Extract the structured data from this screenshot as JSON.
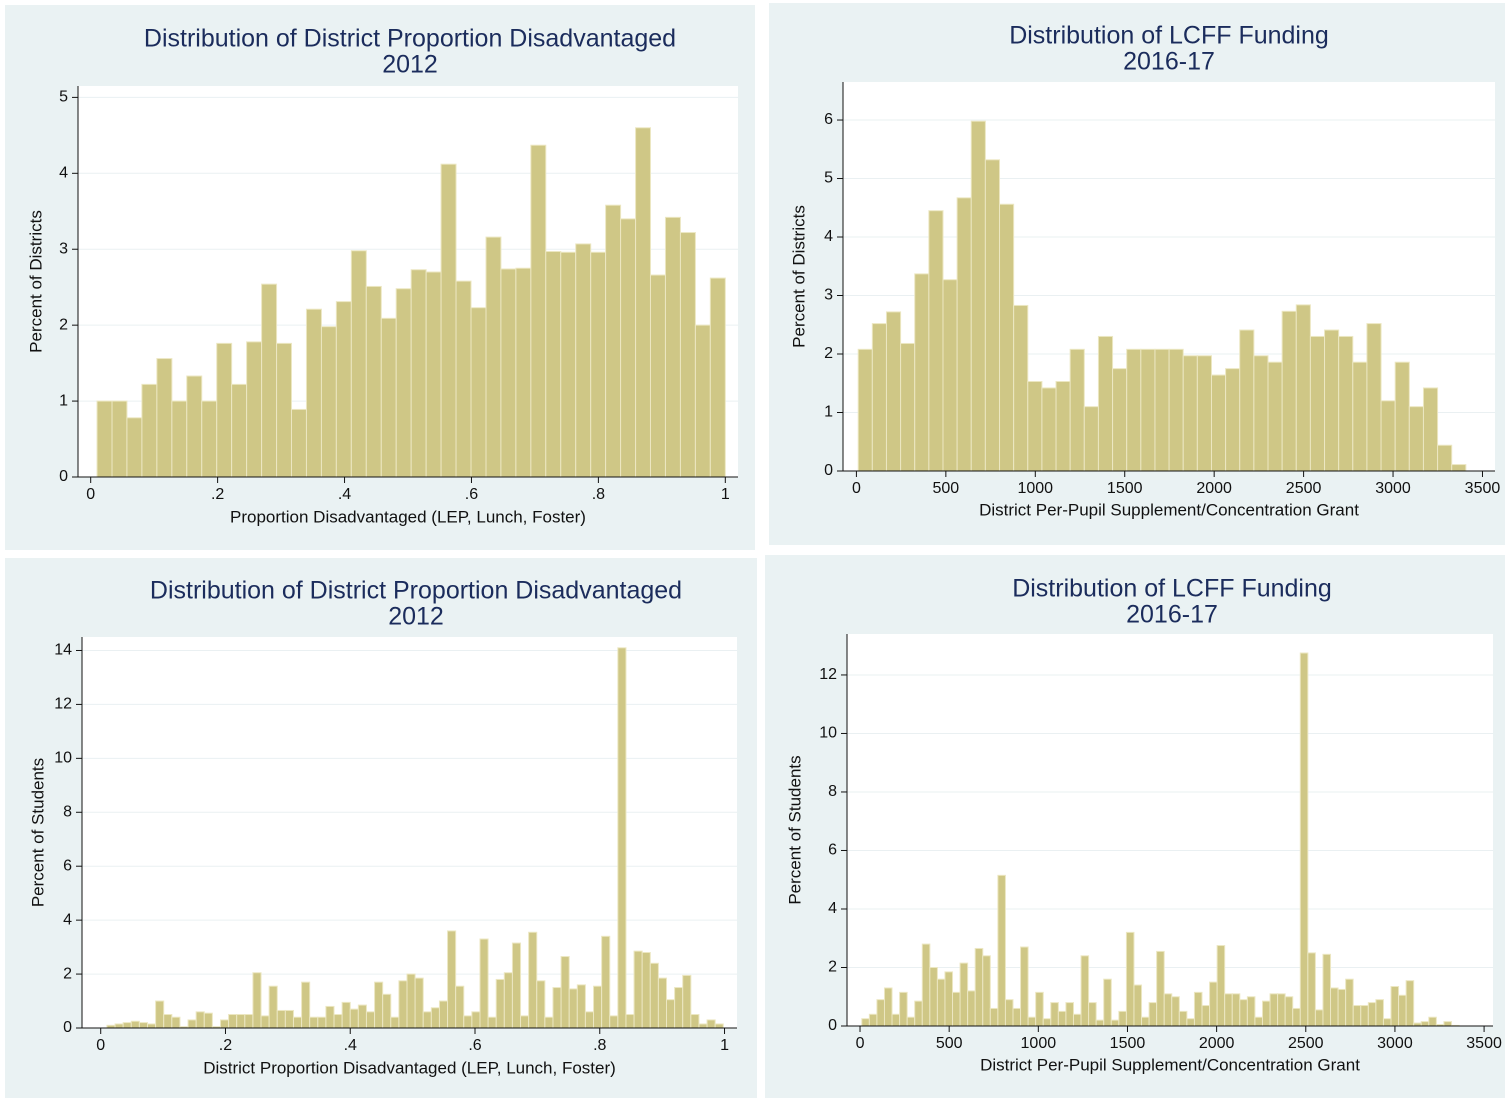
{
  "chart_data": [
    {
      "type": "histogram",
      "title": "Distribution of District Proportion Disadvantaged",
      "subtitle": "2012",
      "x_label": "Proportion Disadvantaged (LEP, Lunch, Foster)",
      "y_label": "Percent of Districts",
      "bins": [
        0.01,
        0.0336,
        0.0571,
        0.0807,
        0.1043,
        0.1279,
        0.1514,
        0.175,
        0.1986,
        0.2221,
        0.2457,
        0.2693,
        0.2929,
        0.3164,
        0.34,
        0.3636,
        0.3871,
        0.4107,
        0.4343,
        0.4579,
        0.4814,
        0.505,
        0.5286,
        0.5521,
        0.5757,
        0.5993,
        0.6229,
        0.6464,
        0.67,
        0.6936,
        0.7171,
        0.7407,
        0.7643,
        0.7879,
        0.8114,
        0.835,
        0.8586,
        0.8821,
        0.9057,
        0.9293,
        0.9529,
        0.9764,
        1.0
      ],
      "values": [
        1.0,
        1.0,
        0.78,
        1.22,
        1.56,
        1.0,
        1.33,
        1.0,
        1.76,
        1.22,
        1.78,
        2.54,
        1.76,
        0.89,
        2.21,
        1.98,
        2.31,
        2.98,
        2.51,
        2.09,
        2.48,
        2.73,
        2.7,
        4.12,
        2.58,
        2.23,
        3.16,
        2.74,
        2.75,
        4.37,
        2.97,
        2.96,
        3.07,
        2.96,
        3.58,
        3.4,
        4.6,
        2.66,
        3.42,
        3.22,
        2.0,
        2.62
      ],
      "color": "#cfc786",
      "xlim": [
        -0.02,
        1.02
      ],
      "ylim": [
        0,
        5.15
      ],
      "xticks": [
        0,
        {
          "value": 0.2,
          "label": ".2"
        },
        {
          "value": 0.4,
          "label": ".4"
        },
        {
          "value": 0.6,
          "label": ".6"
        },
        {
          "value": 0.8,
          "label": ".8"
        },
        1
      ],
      "yticks": [
        0,
        1,
        2,
        3,
        4,
        5
      ],
      "grid": true
    },
    {
      "type": "histogram",
      "title": "Distribution of LCFF Funding",
      "subtitle": "2016-17",
      "x_label": "District Per-Pupil Supplement/Concentration Grant",
      "y_label": "Percent of Districts",
      "bins": [
        10,
        89,
        168,
        247,
        326,
        405,
        484,
        563,
        642,
        721,
        800,
        879,
        958,
        1037,
        1116,
        1195,
        1274,
        1353,
        1432,
        1511,
        1590,
        1669,
        1748,
        1827,
        1906,
        1985,
        2064,
        2143,
        2222,
        2301,
        2380,
        2459,
        2538,
        2617,
        2696,
        2775,
        2854,
        2933,
        3012,
        3091,
        3170,
        3249,
        3328,
        3407
      ],
      "values": [
        2.08,
        2.52,
        2.72,
        2.18,
        3.37,
        4.45,
        3.27,
        4.67,
        5.98,
        5.32,
        4.56,
        2.83,
        1.53,
        1.42,
        1.53,
        2.08,
        1.1,
        2.3,
        1.75,
        2.08,
        2.08,
        2.08,
        2.08,
        1.97,
        1.97,
        1.64,
        1.75,
        2.41,
        1.97,
        1.86,
        2.73,
        2.84,
        2.3,
        2.41,
        2.3,
        1.86,
        2.52,
        1.2,
        1.86,
        1.1,
        1.42,
        0.44,
        0.11
      ],
      "color": "#cfc786",
      "xlim": [
        -75,
        3570
      ],
      "ylim": [
        0,
        6.65
      ],
      "xticks": [
        0,
        500,
        1000,
        1500,
        2000,
        2500,
        3000,
        3500
      ],
      "yticks": [
        0,
        1,
        2,
        3,
        4,
        5,
        6
      ],
      "grid": true
    },
    {
      "type": "histogram",
      "title": "Distribution of District Proportion Disadvantaged",
      "subtitle": "2012",
      "x_label": "District Proportion Disadvantaged (LEP, Lunch, Foster)",
      "y_label": "Percent of Students",
      "bins": [
        0.01,
        0.023,
        0.036,
        0.049,
        0.062,
        0.075,
        0.088,
        0.101,
        0.114,
        0.127,
        0.14,
        0.153,
        0.166,
        0.179,
        0.192,
        0.205,
        0.218,
        0.231,
        0.244,
        0.257,
        0.27,
        0.283,
        0.296,
        0.309,
        0.322,
        0.335,
        0.348,
        0.361,
        0.374,
        0.387,
        0.4,
        0.413,
        0.426,
        0.439,
        0.452,
        0.465,
        0.478,
        0.491,
        0.504,
        0.517,
        0.53,
        0.543,
        0.556,
        0.569,
        0.582,
        0.595,
        0.608,
        0.621,
        0.634,
        0.647,
        0.66,
        0.673,
        0.686,
        0.699,
        0.712,
        0.725,
        0.738,
        0.751,
        0.764,
        0.777,
        0.79,
        0.803,
        0.816,
        0.829,
        0.842,
        0.855,
        0.868,
        0.881,
        0.894,
        0.907,
        0.92,
        0.933,
        0.946,
        0.959,
        0.972,
        0.985,
        0.998
      ],
      "values": [
        0.1,
        0.15,
        0.2,
        0.25,
        0.2,
        0.15,
        1.0,
        0.5,
        0.4,
        0.05,
        0.3,
        0.6,
        0.55,
        0.05,
        0.3,
        0.5,
        0.5,
        0.5,
        2.05,
        0.45,
        1.55,
        0.65,
        0.65,
        0.4,
        1.7,
        0.4,
        0.4,
        0.8,
        0.5,
        0.95,
        0.7,
        0.85,
        0.6,
        1.7,
        1.25,
        0.4,
        1.75,
        2.0,
        1.85,
        0.6,
        0.75,
        1.0,
        3.6,
        1.55,
        0.45,
        0.6,
        3.3,
        0.4,
        1.8,
        2.05,
        3.15,
        0.45,
        3.55,
        1.75,
        0.4,
        1.5,
        2.65,
        1.45,
        1.6,
        0.6,
        1.55,
        3.4,
        0.45,
        14.1,
        0.5,
        2.85,
        2.8,
        2.4,
        1.85,
        1.05,
        1.5,
        1.95,
        0.5,
        0.15,
        0.3,
        0.15
      ],
      "color": "#cfc786",
      "xlim": [
        -0.03,
        1.02
      ],
      "ylim": [
        0,
        14.5
      ],
      "xticks": [
        0,
        {
          "value": 0.2,
          "label": ".2"
        },
        {
          "value": 0.4,
          "label": ".4"
        },
        {
          "value": 0.6,
          "label": ".6"
        },
        {
          "value": 0.8,
          "label": ".8"
        },
        1
      ],
      "yticks": [
        0,
        2,
        4,
        6,
        8,
        10,
        12,
        14
      ],
      "grid": true
    },
    {
      "type": "histogram",
      "title": "Distribution of LCFF Funding",
      "subtitle": "2016-17",
      "x_label": "District Per-Pupil Supplement/Concentration Grant",
      "y_label": "Percent of Students",
      "bins": [
        10,
        52.4,
        94.8,
        137.2,
        179.6,
        222,
        264.4,
        306.8,
        349.2,
        391.6,
        434,
        476.4,
        518.8,
        561.2,
        603.6,
        646,
        688.4,
        730.8,
        773.2,
        815.6,
        858,
        900.4,
        942.8,
        985.2,
        1027.6,
        1070,
        1112.4,
        1154.8,
        1197.2,
        1239.6,
        1282,
        1324.4,
        1366.8,
        1409.2,
        1451.6,
        1494,
        1536.4,
        1578.8,
        1621.2,
        1663.6,
        1706,
        1748.4,
        1790.8,
        1833.2,
        1875.6,
        1918,
        1960.4,
        2002.8,
        2045.2,
        2087.6,
        2130,
        2172.4,
        2214.8,
        2257.2,
        2299.6,
        2342,
        2384.4,
        2426.8,
        2469.2,
        2511.6,
        2554,
        2596.4,
        2638.8,
        2681.2,
        2723.6,
        2766,
        2808.4,
        2850.8,
        2893.2,
        2935.6,
        2978,
        3020.4,
        3062.8,
        3105.2,
        3147.6,
        3190,
        3232.4,
        3274.8,
        3317.2,
        3359.6
      ],
      "values": [
        0.25,
        0.4,
        0.9,
        1.3,
        0.4,
        1.15,
        0.3,
        0.85,
        2.8,
        2.0,
        1.6,
        1.85,
        1.15,
        2.15,
        1.2,
        2.65,
        2.4,
        0.6,
        5.15,
        0.9,
        0.6,
        2.7,
        0.3,
        1.15,
        0.25,
        0.8,
        0.5,
        0.8,
        0.4,
        2.4,
        0.8,
        0.2,
        1.6,
        0.2,
        0.5,
        3.2,
        1.4,
        0.3,
        0.8,
        2.55,
        1.1,
        1.0,
        0.5,
        0.25,
        1.15,
        0.7,
        1.5,
        2.75,
        1.1,
        1.1,
        0.9,
        1.0,
        0.3,
        0.85,
        1.1,
        1.1,
        1.0,
        0.6,
        12.75,
        2.5,
        0.55,
        2.45,
        1.3,
        1.25,
        1.6,
        0.7,
        0.7,
        0.8,
        0.9,
        0.25,
        1.35,
        1.05,
        1.55,
        0.1,
        0.15,
        0.3,
        0.05,
        0.15,
        0.02
      ],
      "color": "#cfc786",
      "xlim": [
        -73,
        3550
      ],
      "ylim": [
        0,
        13.4
      ],
      "xticks": [
        0,
        500,
        1000,
        1500,
        2000,
        2500,
        3000,
        3500
      ],
      "yticks": [
        0,
        2,
        4,
        6,
        8,
        10,
        12
      ],
      "grid": true
    }
  ]
}
